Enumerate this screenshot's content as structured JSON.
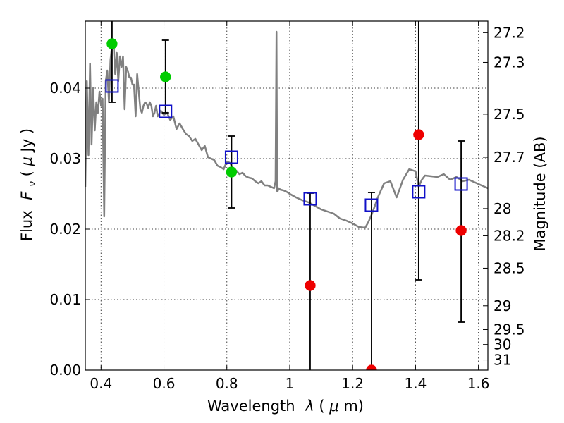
{
  "chart_data": {
    "type": "scatter",
    "xlabel_text": "Wavelength",
    "xlabel_symbol": "λ",
    "xlabel_unit_open": " (",
    "xlabel_unit_mu": "μ",
    "xlabel_unit_close": "m)",
    "ylabel_text": "Flux",
    "ylabel_symbol": "F",
    "ylabel_subscript": "ν",
    "ylabel_unit_open": " ( ",
    "ylabel_unit_mu": "μ",
    "ylabel_unit_close": "Jy )",
    "y2label": "Magnitude (AB)",
    "xlim": [
      0.35,
      1.63
    ],
    "ylim": [
      0.0,
      0.0495
    ],
    "grid": true,
    "xticks": [
      {
        "value": 0.4,
        "label": "0.4"
      },
      {
        "value": 0.6,
        "label": "0.6"
      },
      {
        "value": 0.8,
        "label": "0.8"
      },
      {
        "value": 1.0,
        "label": "1"
      },
      {
        "value": 1.2,
        "label": "1.2"
      },
      {
        "value": 1.4,
        "label": "1.4"
      },
      {
        "value": 1.6,
        "label": "1.6"
      }
    ],
    "yticks": [
      {
        "value": 0.0,
        "label": "0.00"
      },
      {
        "value": 0.01,
        "label": "0.01"
      },
      {
        "value": 0.02,
        "label": "0.02"
      },
      {
        "value": 0.03,
        "label": "0.03"
      },
      {
        "value": 0.04,
        "label": "0.04"
      }
    ],
    "magnitude_ticks": [
      {
        "value": 27.2,
        "label": "27.2"
      },
      {
        "value": 27.3,
        "label": "27.3"
      },
      {
        "value": 27.5,
        "label": "27.5"
      },
      {
        "value": 27.7,
        "label": "27.7"
      },
      {
        "value": 28.0,
        "label": "28"
      },
      {
        "value": 28.2,
        "label": "28.2"
      },
      {
        "value": 28.5,
        "label": "28.5"
      },
      {
        "value": 29.0,
        "label": "29"
      },
      {
        "value": 29.5,
        "label": "29.5"
      },
      {
        "value": 30.0,
        "label": "30"
      },
      {
        "value": 31.0,
        "label": "31"
      }
    ],
    "model_spectrum": {
      "color": "#808080",
      "x": [
        0.35,
        0.355,
        0.36,
        0.365,
        0.37,
        0.375,
        0.38,
        0.385,
        0.39,
        0.395,
        0.4,
        0.405,
        0.41,
        0.415,
        0.42,
        0.425,
        0.43,
        0.435,
        0.44,
        0.445,
        0.45,
        0.455,
        0.46,
        0.465,
        0.47,
        0.475,
        0.48,
        0.485,
        0.49,
        0.495,
        0.5,
        0.505,
        0.51,
        0.515,
        0.52,
        0.525,
        0.53,
        0.535,
        0.54,
        0.545,
        0.55,
        0.555,
        0.56,
        0.565,
        0.57,
        0.575,
        0.58,
        0.59,
        0.6,
        0.61,
        0.62,
        0.63,
        0.64,
        0.65,
        0.66,
        0.67,
        0.68,
        0.69,
        0.7,
        0.71,
        0.72,
        0.73,
        0.74,
        0.75,
        0.76,
        0.77,
        0.78,
        0.79,
        0.8,
        0.81,
        0.82,
        0.83,
        0.84,
        0.85,
        0.86,
        0.87,
        0.88,
        0.89,
        0.9,
        0.91,
        0.92,
        0.93,
        0.94,
        0.95,
        0.955,
        0.958,
        0.96,
        0.962,
        0.965,
        0.97,
        0.98,
        0.99,
        1.0,
        1.02,
        1.04,
        1.06,
        1.08,
        1.1,
        1.12,
        1.14,
        1.16,
        1.18,
        1.2,
        1.22,
        1.24,
        1.25,
        1.26,
        1.27,
        1.28,
        1.3,
        1.32,
        1.34,
        1.36,
        1.38,
        1.4,
        1.41,
        1.42,
        1.43,
        1.45,
        1.47,
        1.49,
        1.51,
        1.53,
        1.55,
        1.57,
        1.59,
        1.61,
        1.63
      ],
      "y": [
        0.026,
        0.041,
        0.0305,
        0.0435,
        0.032,
        0.04,
        0.034,
        0.038,
        0.0365,
        0.0395,
        0.0375,
        0.0385,
        0.0218,
        0.041,
        0.0425,
        0.038,
        0.044,
        0.046,
        0.0465,
        0.042,
        0.045,
        0.041,
        0.0445,
        0.043,
        0.0445,
        0.037,
        0.043,
        0.0425,
        0.0415,
        0.0415,
        0.0405,
        0.0405,
        0.036,
        0.042,
        0.0395,
        0.037,
        0.0365,
        0.0375,
        0.038,
        0.0378,
        0.0372,
        0.038,
        0.0375,
        0.036,
        0.0365,
        0.0375,
        0.036,
        0.0368,
        0.0362,
        0.0365,
        0.0355,
        0.036,
        0.0342,
        0.035,
        0.0342,
        0.0335,
        0.0332,
        0.0325,
        0.0328,
        0.032,
        0.0312,
        0.0318,
        0.0302,
        0.03,
        0.0298,
        0.029,
        0.0288,
        0.0285,
        0.0296,
        0.0294,
        0.0285,
        0.0283,
        0.0278,
        0.028,
        0.0275,
        0.0273,
        0.0272,
        0.0268,
        0.0265,
        0.0268,
        0.0262,
        0.0262,
        0.026,
        0.0258,
        0.0268,
        0.048,
        0.0254,
        0.0254,
        0.0258,
        0.0256,
        0.0255,
        0.0253,
        0.025,
        0.0245,
        0.0241,
        0.0238,
        0.0233,
        0.0228,
        0.0225,
        0.0222,
        0.0215,
        0.0212,
        0.0208,
        0.0203,
        0.0202,
        0.021,
        0.022,
        0.0232,
        0.0245,
        0.0265,
        0.0268,
        0.0245,
        0.027,
        0.0285,
        0.0282,
        0.026,
        0.027,
        0.0276,
        0.0275,
        0.0274,
        0.0278,
        0.027,
        0.0274,
        0.0268,
        0.027,
        0.0266,
        0.0262,
        0.0258
      ]
    },
    "series": [
      {
        "marker": "open-square",
        "color": "#1010c8",
        "x": [
          0.435,
          0.605,
          0.815,
          1.065,
          1.26,
          1.41,
          1.545
        ],
        "y": [
          0.0403,
          0.0367,
          0.0302,
          0.0243,
          0.0234,
          0.0253,
          0.0264
        ]
      },
      {
        "marker": "filled-circle",
        "color": "#00cc00",
        "x": [
          0.435,
          0.605,
          0.815
        ],
        "y": [
          0.0463,
          0.0416,
          0.0281
        ]
      },
      {
        "marker": "filled-circle",
        "color": "#ee0000",
        "x": [
          1.065,
          1.26,
          1.41,
          1.545
        ],
        "y": [
          0.012,
          0.0,
          0.0334,
          0.0198
        ]
      }
    ],
    "error_bars": [
      {
        "x": 0.435,
        "low": 0.038,
        "high": 0.0495,
        "cap_low": true,
        "cap_high": false
      },
      {
        "x": 0.605,
        "low": 0.0365,
        "high": 0.0468,
        "cap_low": true,
        "cap_high": true
      },
      {
        "x": 0.815,
        "low": 0.023,
        "high": 0.0332,
        "cap_low": true,
        "cap_high": true
      },
      {
        "x": 1.065,
        "low": 0.0,
        "high": 0.0251,
        "cap_low": false,
        "cap_high": true
      },
      {
        "x": 1.26,
        "low": 0.0,
        "high": 0.0252,
        "cap_low": false,
        "cap_high": true
      },
      {
        "x": 1.41,
        "low": 0.0128,
        "high": 0.0495,
        "cap_low": true,
        "cap_high": false
      },
      {
        "x": 1.545,
        "low": 0.0068,
        "high": 0.0325,
        "cap_low": true,
        "cap_high": true
      }
    ]
  }
}
